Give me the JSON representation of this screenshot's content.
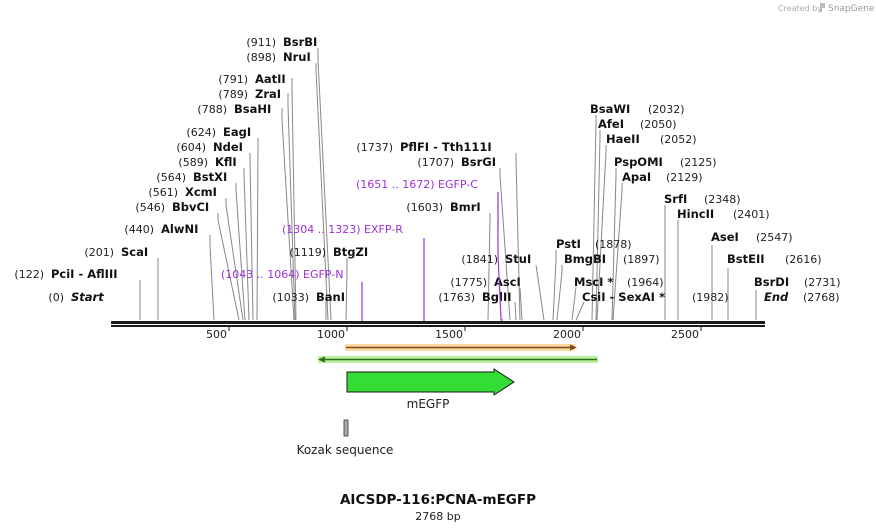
{
  "credit": {
    "created_by": "Created by",
    "brand": "SnapGene"
  },
  "plasmid": {
    "name": "AICSDP-116:PCNA-mEGFP",
    "length": "2768 bp"
  },
  "colors": {
    "backbone": "#1a1a1a",
    "primer": "#9b30d9",
    "orange_feature": "#f7a534",
    "green_feature": "#33dd33",
    "gray_feature": "#aaaaaa",
    "site_line": "#888888"
  },
  "ruler": {
    "ticks": [
      {
        "label": "500"
      },
      {
        "label": "1000"
      },
      {
        "label": "1500"
      },
      {
        "label": "2000"
      },
      {
        "label": "2500"
      }
    ]
  },
  "sites": [
    {
      "pos": "(911)",
      "name": "BsrBI"
    },
    {
      "pos": "(898)",
      "name": "NruI"
    },
    {
      "pos": "(791)",
      "name": "AatII"
    },
    {
      "pos": "(789)",
      "name": "ZraI"
    },
    {
      "pos": "(788)",
      "name": "BsaHI"
    },
    {
      "pos": "(624)",
      "name": "EagI"
    },
    {
      "pos": "(604)",
      "name": "NdeI"
    },
    {
      "pos": "(589)",
      "name": "KflI"
    },
    {
      "pos": "(564)",
      "name": "BstXI"
    },
    {
      "pos": "(561)",
      "name": "XcmI"
    },
    {
      "pos": "(546)",
      "name": "BbvCI"
    },
    {
      "pos": "(440)",
      "name": "AlwNI"
    },
    {
      "pos": "(201)",
      "name": "ScaI"
    },
    {
      "pos": "(122)",
      "name": "PciI  -  AflIII"
    },
    {
      "pos": "(0)",
      "name": "Start"
    },
    {
      "pos": "(1119)",
      "name": "BtgZI"
    },
    {
      "pos": "(1033)",
      "name": "BanI"
    },
    {
      "pos": "(1737)",
      "name": "PflFI  -  Tth111I"
    },
    {
      "pos": "(1707)",
      "name": "BsrGI"
    },
    {
      "pos": "(1603)",
      "name": "BmrI"
    },
    {
      "pos": "(1841)",
      "name": "StuI"
    },
    {
      "pos": "(1775)",
      "name": "AscI"
    },
    {
      "pos": "(1763)",
      "name": "BglII"
    },
    {
      "pos": "(2032)",
      "name": "BsaWI"
    },
    {
      "pos": "(2050)",
      "name": "AfeI"
    },
    {
      "pos": "(2052)",
      "name": "HaeII"
    },
    {
      "pos": "(2125)",
      "name": "PspOMI"
    },
    {
      "pos": "(2129)",
      "name": "ApaI"
    },
    {
      "pos": "(1878)",
      "name": "PstI"
    },
    {
      "pos": "(1897)",
      "name": "BmgBI"
    },
    {
      "pos": "(1964)",
      "name": "MscI *"
    },
    {
      "pos": "(1982)",
      "name": "CsiI  -  SexAI *"
    },
    {
      "pos": "(2348)",
      "name": "SrfI"
    },
    {
      "pos": "(2401)",
      "name": "HincII"
    },
    {
      "pos": "(2547)",
      "name": "AseI"
    },
    {
      "pos": "(2616)",
      "name": "BstEII"
    },
    {
      "pos": "(2731)",
      "name": "BsrDI"
    },
    {
      "pos": "(2768)",
      "name": "End"
    }
  ],
  "primers": [
    {
      "label": "(1651 .. 1672)  EGFP-C"
    },
    {
      "label": "(1304 .. 1323)  EXFP-R"
    },
    {
      "label": "(1043 .. 1064)  EGFP-N"
    }
  ],
  "features": {
    "megfp": {
      "label": "mEGFP"
    },
    "kozak": {
      "label": "Kozak sequence"
    }
  }
}
